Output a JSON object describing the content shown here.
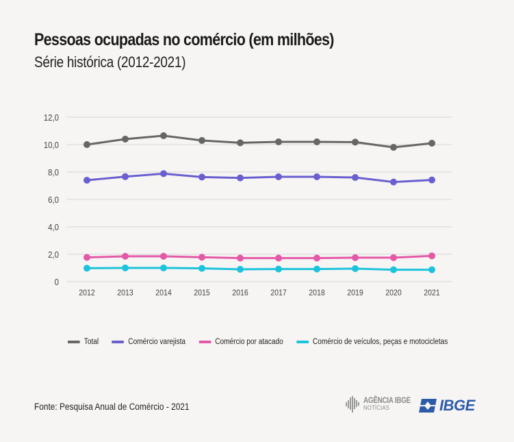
{
  "header": {
    "title": "Pessoas ocupadas no comércio (em milhões)",
    "subtitle": "Série histórica (2012-2021)"
  },
  "chart_data": {
    "type": "line",
    "title": "Pessoas ocupadas no comércio (em milhões)",
    "subtitle": "Série histórica (2012-2021)",
    "xlabel": "",
    "ylabel": "",
    "x": [
      "2012",
      "2013",
      "2014",
      "2015",
      "2016",
      "2017",
      "2018",
      "2019",
      "2020",
      "2021"
    ],
    "ylim": [
      0,
      12
    ],
    "yticks": [
      0,
      2,
      4,
      6,
      8,
      10,
      12
    ],
    "ytick_labels": [
      "0",
      "2,0",
      "4,0",
      "6,0",
      "8,0",
      "10,0",
      "12,0"
    ],
    "grid": true,
    "legend_position": "bottom",
    "series": [
      {
        "name": "Total",
        "color": "#666666",
        "values": [
          10.0,
          10.4,
          10.65,
          10.3,
          10.13,
          10.2,
          10.2,
          10.18,
          9.8,
          10.1
        ]
      },
      {
        "name": "Comércio varejista",
        "color": "#6a5fcf",
        "values": [
          7.4,
          7.66,
          7.88,
          7.63,
          7.57,
          7.65,
          7.65,
          7.6,
          7.27,
          7.42
        ]
      },
      {
        "name": "Comércio por atacado",
        "color": "#e458a8",
        "values": [
          1.77,
          1.85,
          1.85,
          1.78,
          1.72,
          1.72,
          1.72,
          1.75,
          1.75,
          1.88
        ]
      },
      {
        "name": "Comércio de veículos, peças e motocicletas",
        "color": "#1cc3dc",
        "values": [
          0.98,
          1.0,
          1.0,
          0.97,
          0.9,
          0.92,
          0.92,
          0.95,
          0.87,
          0.87
        ]
      }
    ]
  },
  "footer": {
    "source": "Fonte: Pesquisa Anual de Comércio - 2021",
    "logo_agencia_line1": "AGÊNCIA IBGE",
    "logo_agencia_line2": "NOTÍCIAS",
    "logo_ibge": "IBGE",
    "logo_ibge_color": "#2e5ba8"
  }
}
